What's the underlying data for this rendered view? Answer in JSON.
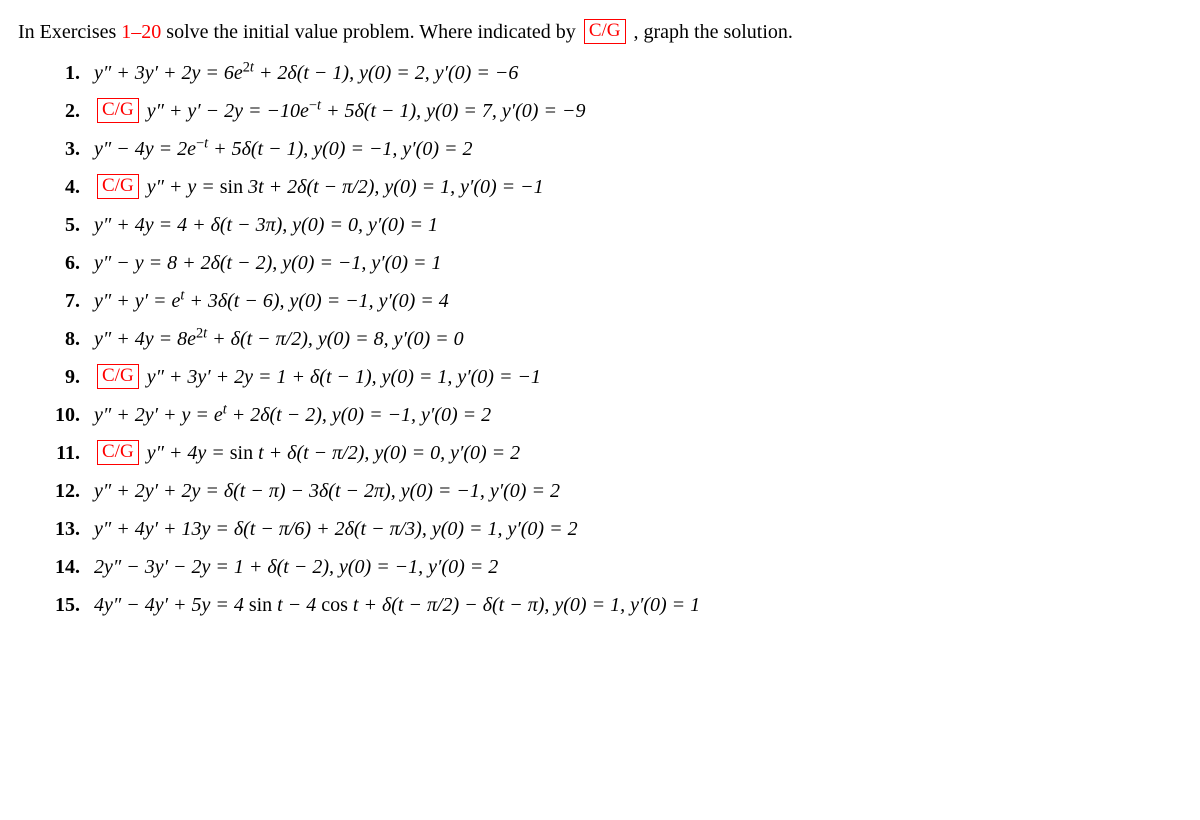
{
  "colors": {
    "text": "#000000",
    "accent": "#ff0000",
    "cg_border": "#ff0000",
    "background": "#ffffff"
  },
  "intro": {
    "prefix": "In Exercises ",
    "range": "1–20",
    "mid": " solve the initial value problem. Where indicated by ",
    "cg": "C/G",
    "suffix": " , graph the solution."
  },
  "cg_label": "C/G",
  "exercises": [
    {
      "n": "1.",
      "cg": false,
      "eq": "y″ + 3y′ + 2y = 6e<sup>2<span class='it'>t</span></sup> + 2δ(t − 1),   y(0) = 2,   y′(0) = −6"
    },
    {
      "n": "2.",
      "cg": true,
      "eq": "y″ + y′ − 2y = −10e<sup>−<span class='it'>t</span></sup> + 5δ(t − 1),   y(0) = 7,   y′(0) = −9"
    },
    {
      "n": "3.",
      "cg": false,
      "eq": "y″ − 4y = 2e<sup>−<span class='it'>t</span></sup> + 5δ(t − 1),   y(0) = −1,   y′(0) = 2"
    },
    {
      "n": "4.",
      "cg": true,
      "eq": "y″ + y = <span class='rm'>sin</span> 3t + 2δ(t − π/2),   y(0) = 1,   y′(0) = −1"
    },
    {
      "n": "5.",
      "cg": false,
      "eq": "y″ + 4y = 4 + δ(t − 3π),   y(0) = 0,   y′(0) = 1"
    },
    {
      "n": "6.",
      "cg": false,
      "eq": "y″ − y = 8 + 2δ(t − 2),   y(0) = −1,   y′(0) = 1"
    },
    {
      "n": "7.",
      "cg": false,
      "eq": "y″ + y′ = e<sup><span class='it'>t</span></sup> + 3δ(t − 6),   y(0) = −1,   y′(0) = 4"
    },
    {
      "n": "8.",
      "cg": false,
      "eq": "y″ + 4y = 8e<sup>2<span class='it'>t</span></sup> + δ(t − π/2),   y(0) = 8,   y′(0) = 0"
    },
    {
      "n": "9.",
      "cg": true,
      "eq": "y″ + 3y′ + 2y = 1 + δ(t − 1),   y(0) = 1,   y′(0) = −1"
    },
    {
      "n": "10.",
      "cg": false,
      "eq": "y″ + 2y′ + y = e<sup><span class='it'>t</span></sup> + 2δ(t − 2),   y(0) = −1,   y′(0) = 2"
    },
    {
      "n": "11.",
      "cg": true,
      "eq": "y″ + 4y = <span class='rm'>sin</span> t + δ(t − π/2),   y(0) = 0,   y′(0) = 2"
    },
    {
      "n": "12.",
      "cg": false,
      "eq": "y″ + 2y′ + 2y = δ(t − π) − 3δ(t − 2π),   y(0) = −1,   y′(0) = 2"
    },
    {
      "n": "13.",
      "cg": false,
      "eq": "y″ + 4y′ + 13y = δ(t − π/6) + 2δ(t − π/3),   y(0) = 1,   y′(0) = 2"
    },
    {
      "n": "14.",
      "cg": false,
      "eq": "2y″ − 3y′ − 2y = 1 + δ(t − 2),   y(0) = −1,   y′(0) = 2"
    },
    {
      "n": "15.",
      "cg": false,
      "eq": "4y″ − 4y′ + 5y = 4 <span class='rm'>sin</span> t − 4 <span class='rm'>cos</span> t + δ(t − π/2) − δ(t − π),   y(0) = 1,   y′(0) = 1"
    }
  ]
}
